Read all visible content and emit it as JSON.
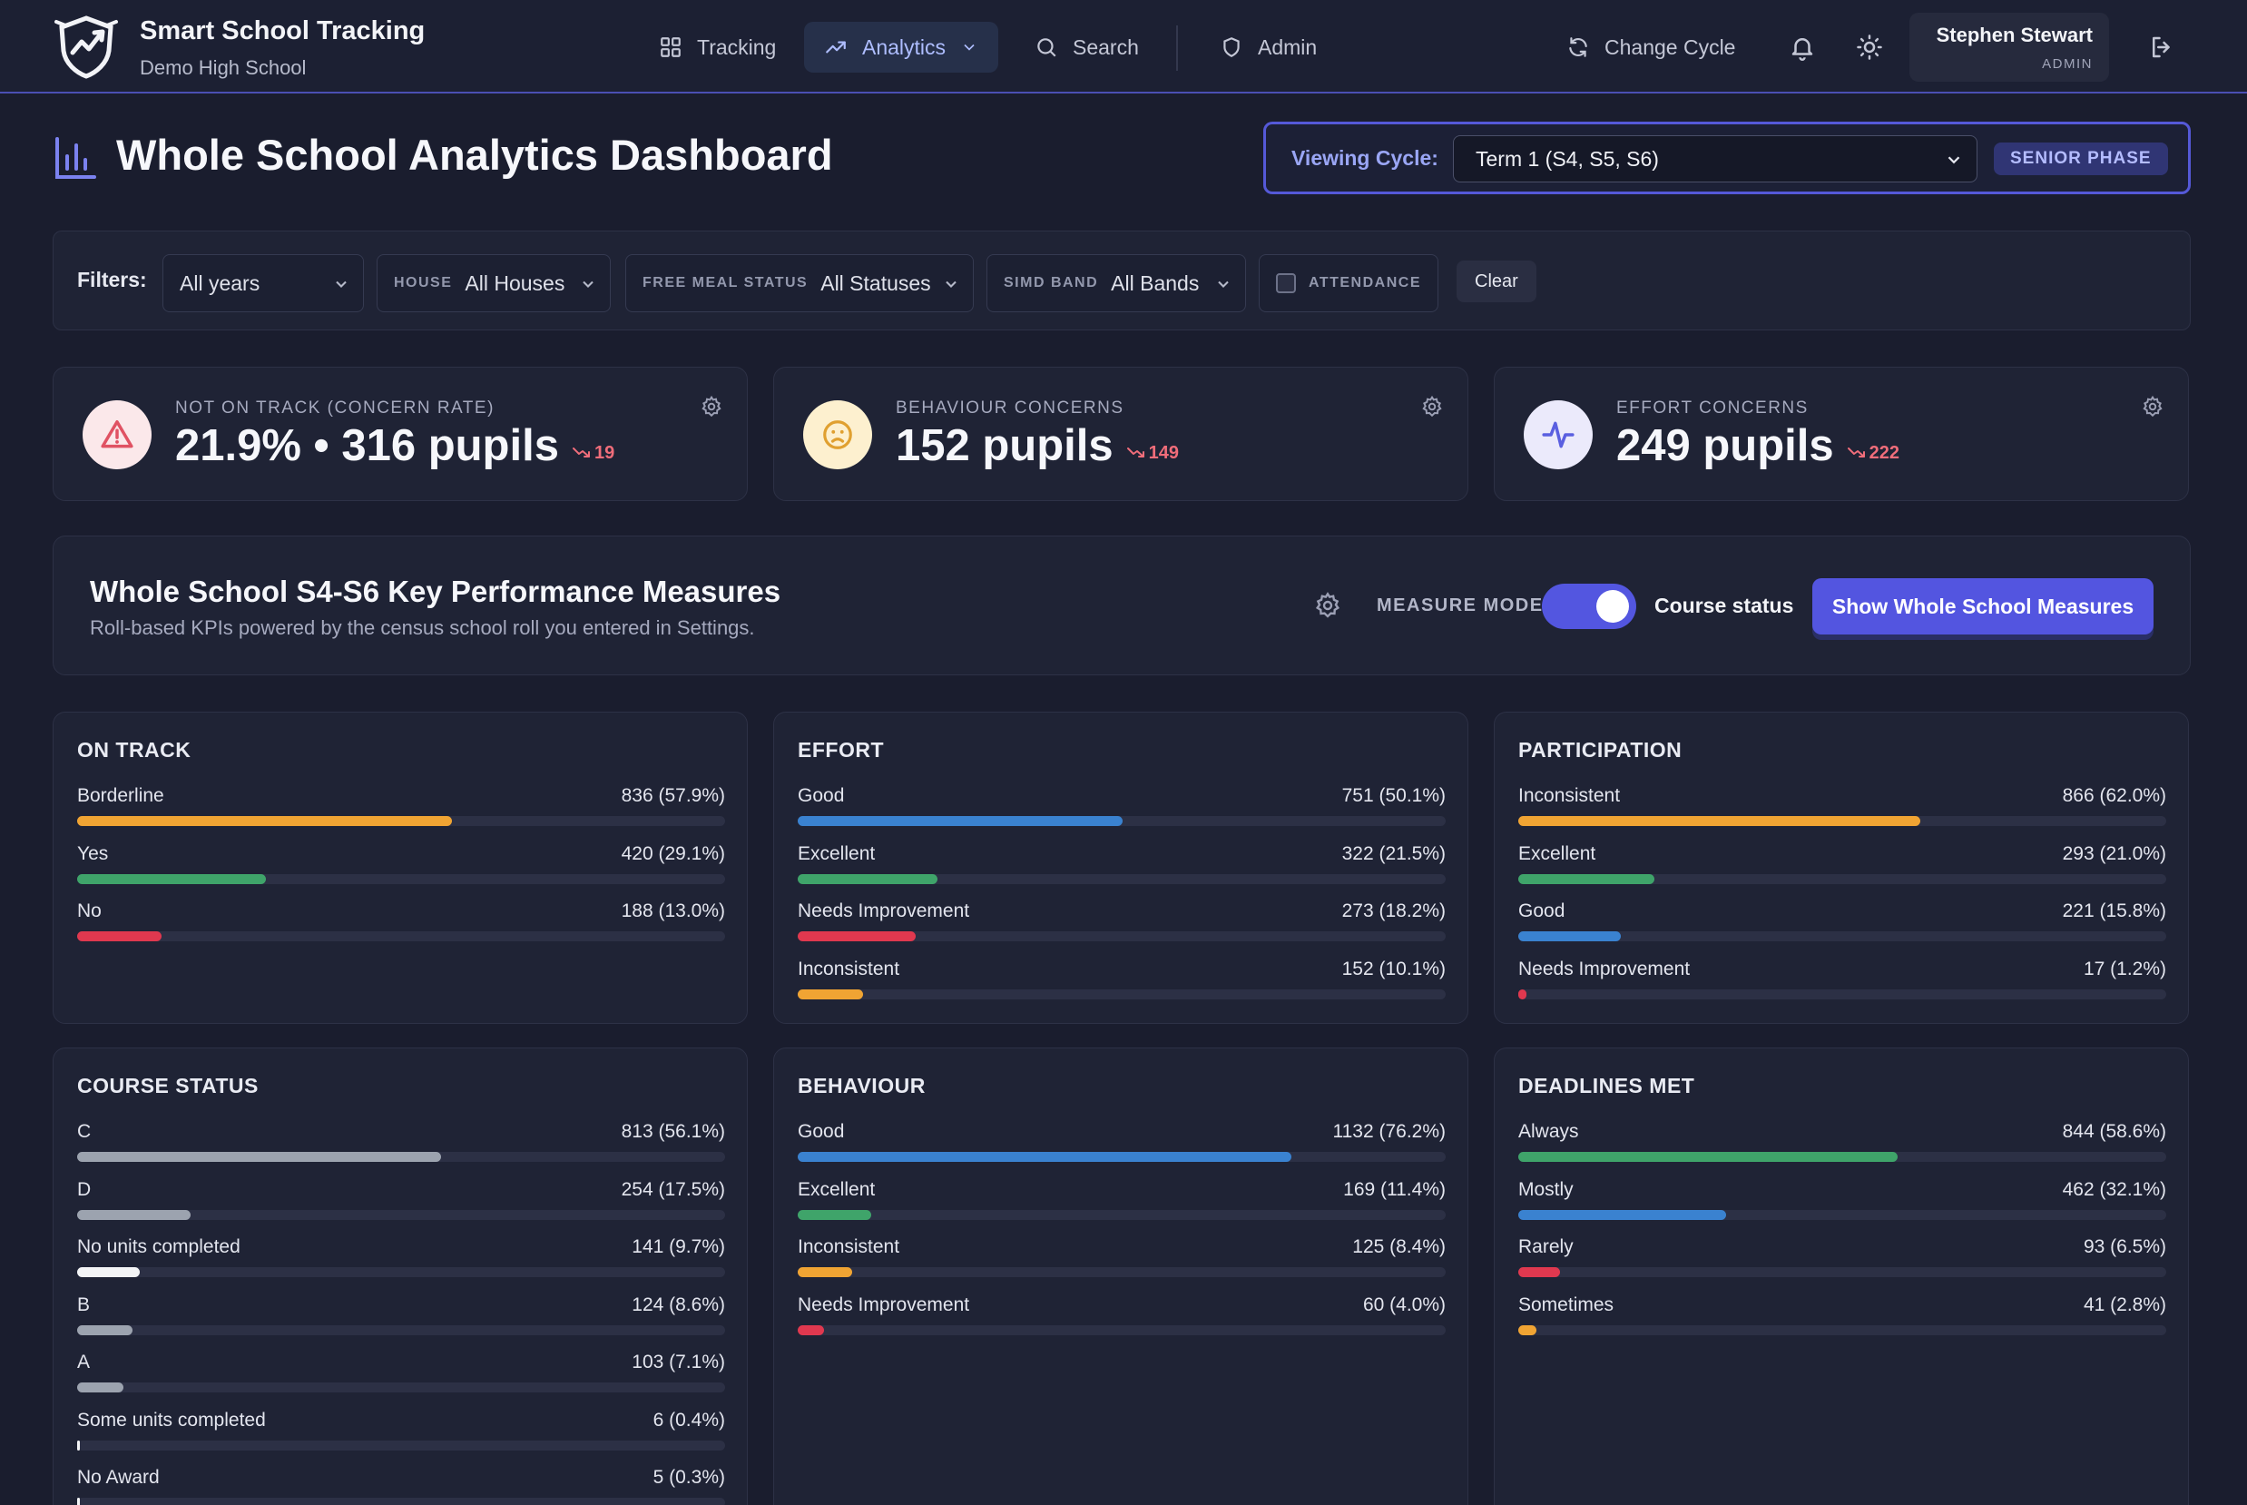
{
  "app": {
    "title": "Smart School Tracking",
    "school": "Demo High School"
  },
  "nav": {
    "tracking": "Tracking",
    "analytics": "Analytics",
    "search": "Search",
    "admin": "Admin",
    "change_cycle": "Change Cycle"
  },
  "user": {
    "name": "Stephen Stewart",
    "role": "ADMIN"
  },
  "page": {
    "title": "Whole School Analytics Dashboard"
  },
  "cycle": {
    "label": "Viewing Cycle:",
    "selected": "Term 1 (S4, S5, S6)",
    "phase": "SENIOR PHASE"
  },
  "filters": {
    "label": "Filters:",
    "year": {
      "value": "All years"
    },
    "house": {
      "label": "HOUSE",
      "value": "All Houses"
    },
    "free_meal": {
      "label": "FREE MEAL STATUS",
      "value": "All Statuses"
    },
    "simd": {
      "label": "SIMD BAND",
      "value": "All Bands"
    },
    "attendance": {
      "label": "ATTENDANCE"
    },
    "clear": "Clear"
  },
  "summary": [
    {
      "label": "NOT ON TRACK (CONCERN RATE)",
      "value": "21.9% • 316 pupils",
      "delta": "19",
      "icon": "warning-icon",
      "color": "#e05263"
    },
    {
      "label": "BEHAVIOUR CONCERNS",
      "value": "152 pupils",
      "delta": "149",
      "icon": "sad-face-icon",
      "color": "#e0a030"
    },
    {
      "label": "EFFORT CONCERNS",
      "value": "249 pupils",
      "delta": "222",
      "icon": "pulse-icon",
      "color": "#5a5fe0"
    }
  ],
  "kpi": {
    "title": "Whole School S4-S6 Key Performance Measures",
    "subtitle": "Roll-based KPIs powered by the census school roll you entered in Settings.",
    "mode_label": "MEASURE MODE",
    "mode_value": "Course status",
    "mode_on": true,
    "button": "Show Whole School Measures"
  },
  "colors": {
    "orange": "#f0a433",
    "green": "#3fa46a",
    "red": "#e0384f",
    "blue": "#3a82d0",
    "grey": "#9ca3af",
    "white": "#f3f4f6"
  },
  "metrics": [
    {
      "title": "ON TRACK",
      "rows": [
        {
          "name": "Borderline",
          "value": "836 (57.9%)",
          "fraction": 0.579,
          "color": "orange"
        },
        {
          "name": "Yes",
          "value": "420 (29.1%)",
          "fraction": 0.291,
          "color": "green"
        },
        {
          "name": "No",
          "value": "188 (13.0%)",
          "fraction": 0.13,
          "color": "red"
        }
      ]
    },
    {
      "title": "EFFORT",
      "rows": [
        {
          "name": "Good",
          "value": "751 (50.1%)",
          "fraction": 0.501,
          "color": "blue"
        },
        {
          "name": "Excellent",
          "value": "322 (21.5%)",
          "fraction": 0.215,
          "color": "green"
        },
        {
          "name": "Needs Improvement",
          "value": "273 (18.2%)",
          "fraction": 0.182,
          "color": "red"
        },
        {
          "name": "Inconsistent",
          "value": "152 (10.1%)",
          "fraction": 0.101,
          "color": "orange"
        }
      ]
    },
    {
      "title": "PARTICIPATION",
      "rows": [
        {
          "name": "Inconsistent",
          "value": "866 (62.0%)",
          "fraction": 0.62,
          "color": "orange"
        },
        {
          "name": "Excellent",
          "value": "293 (21.0%)",
          "fraction": 0.21,
          "color": "green"
        },
        {
          "name": "Good",
          "value": "221 (15.8%)",
          "fraction": 0.158,
          "color": "blue"
        },
        {
          "name": "Needs Improvement",
          "value": "17 (1.2%)",
          "fraction": 0.012,
          "color": "red"
        }
      ]
    },
    {
      "title": "COURSE STATUS",
      "rows": [
        {
          "name": "C",
          "value": "813 (56.1%)",
          "fraction": 0.561,
          "color": "grey"
        },
        {
          "name": "D",
          "value": "254 (17.5%)",
          "fraction": 0.175,
          "color": "grey"
        },
        {
          "name": "No units completed",
          "value": "141 (9.7%)",
          "fraction": 0.097,
          "color": "white"
        },
        {
          "name": "B",
          "value": "124 (8.6%)",
          "fraction": 0.086,
          "color": "grey"
        },
        {
          "name": "A",
          "value": "103 (7.1%)",
          "fraction": 0.071,
          "color": "grey"
        },
        {
          "name": "Some units completed",
          "value": "6 (0.4%)",
          "fraction": 0.004,
          "color": "white"
        },
        {
          "name": "No Award",
          "value": "5 (0.3%)",
          "fraction": 0.003,
          "color": "white"
        }
      ]
    },
    {
      "title": "BEHAVIOUR",
      "rows": [
        {
          "name": "Good",
          "value": "1132 (76.2%)",
          "fraction": 0.762,
          "color": "blue"
        },
        {
          "name": "Excellent",
          "value": "169 (11.4%)",
          "fraction": 0.114,
          "color": "green"
        },
        {
          "name": "Inconsistent",
          "value": "125 (8.4%)",
          "fraction": 0.084,
          "color": "orange"
        },
        {
          "name": "Needs Improvement",
          "value": "60 (4.0%)",
          "fraction": 0.04,
          "color": "red"
        }
      ]
    },
    {
      "title": "DEADLINES MET",
      "rows": [
        {
          "name": "Always",
          "value": "844 (58.6%)",
          "fraction": 0.586,
          "color": "green"
        },
        {
          "name": "Mostly",
          "value": "462 (32.1%)",
          "fraction": 0.321,
          "color": "blue"
        },
        {
          "name": "Rarely",
          "value": "93 (6.5%)",
          "fraction": 0.065,
          "color": "red"
        },
        {
          "name": "Sometimes",
          "value": "41 (2.8%)",
          "fraction": 0.028,
          "color": "orange"
        }
      ]
    }
  ]
}
